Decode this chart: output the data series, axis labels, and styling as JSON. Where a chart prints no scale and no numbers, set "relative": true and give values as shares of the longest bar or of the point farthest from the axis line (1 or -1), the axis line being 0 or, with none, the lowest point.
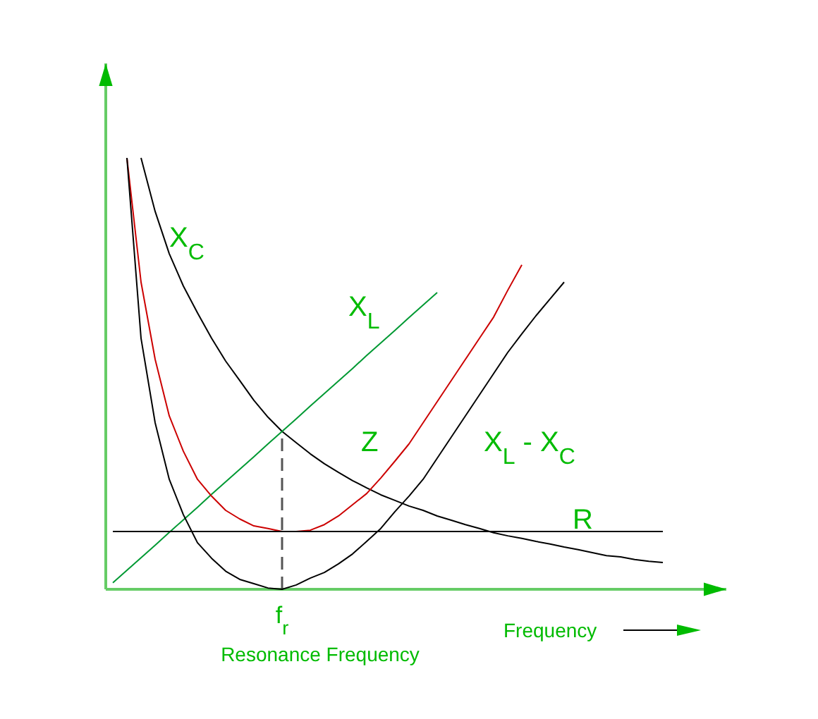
{
  "chart_data": {
    "type": "line",
    "relative": true,
    "xlabel": "Frequency",
    "marker": "none",
    "line_style": "solid",
    "categories": [
      null,
      null,
      null,
      null,
      null,
      null,
      null,
      null,
      null,
      null,
      null,
      null,
      null,
      null,
      null,
      null,
      null,
      null,
      null,
      null,
      null,
      null,
      null,
      null,
      null,
      null,
      null,
      null,
      null,
      null,
      null,
      null,
      null,
      null,
      null,
      null,
      null,
      null,
      null,
      null
    ],
    "series": [
      {
        "name": "X$_{C}$",
        "color": "#000000",
        "values": [
          null,
          null,
          1,
          0.876,
          0.778,
          0.703,
          0.641,
          0.582,
          0.529,
          0.484,
          0.438,
          0.399,
          0.366,
          0.34,
          0.314,
          0.291,
          0.271,
          0.252,
          0.235,
          0.219,
          0.206,
          0.193,
          0.183,
          0.17,
          0.16,
          0.15,
          0.141,
          0.131,
          0.124,
          0.118,
          0.111,
          0.105,
          0.098,
          0.092,
          0.085,
          0.078,
          0.075,
          0.069,
          0.065,
          0.062
        ]
      },
      {
        "name": "X$_{L}$",
        "color": "#009933",
        "values": [
          0.015,
          0.044,
          0.073,
          0.102,
          0.132,
          0.161,
          0.19,
          0.22,
          0.249,
          0.278,
          0.307,
          0.337,
          0.366,
          0.395,
          0.425,
          0.454,
          0.483,
          0.512,
          0.542,
          0.571,
          0.6,
          0.63,
          0.659,
          0.688,
          null,
          null,
          null,
          null,
          null,
          null,
          null,
          null,
          null,
          null,
          null,
          null,
          null,
          null,
          null,
          null
        ]
      },
      {
        "name": "Z",
        "color": "#cc0000",
        "values": [
          null,
          1,
          0.712,
          0.533,
          0.402,
          0.32,
          0.255,
          0.216,
          0.183,
          0.163,
          0.147,
          0.141,
          0.134,
          0.134,
          0.137,
          0.15,
          0.17,
          0.196,
          0.222,
          0.258,
          0.297,
          0.337,
          0.386,
          0.435,
          0.484,
          0.533,
          0.582,
          0.631,
          0.693,
          0.752,
          null,
          null,
          null,
          null,
          null,
          null,
          null,
          null,
          null,
          null
        ]
      },
      {
        "name": "X$_{L}$ - X$_{C}$",
        "color": "#000000",
        "values": [
          null,
          1,
          0.582,
          0.386,
          0.255,
          0.173,
          0.108,
          0.072,
          0.042,
          0.023,
          0.013,
          0.003,
          0,
          0.01,
          0.026,
          0.039,
          0.059,
          0.082,
          0.111,
          0.141,
          0.18,
          0.216,
          0.255,
          0.304,
          0.353,
          0.402,
          0.451,
          0.5,
          0.549,
          0.592,
          0.634,
          0.673,
          0.712,
          null,
          null,
          null,
          null,
          null,
          null,
          null
        ]
      },
      {
        "name": "R",
        "color": "#000000",
        "values": [
          0.134,
          0.134,
          0.134,
          0.134,
          0.134,
          0.134,
          0.134,
          0.134,
          0.134,
          0.134,
          0.134,
          0.134,
          0.134,
          0.134,
          0.134,
          0.134,
          0.134,
          0.134,
          0.134,
          0.134,
          0.134,
          0.134,
          0.134,
          0.134,
          0.134,
          0.134,
          0.134,
          0.134,
          0.134,
          0.134,
          0.134,
          0.134,
          0.134,
          0.134,
          0.134,
          0.134,
          0.134,
          0.134,
          0.134,
          0.134
        ]
      }
    ],
    "annotations": [
      "f$_{r}$",
      "Resonance Frequency"
    ]
  }
}
